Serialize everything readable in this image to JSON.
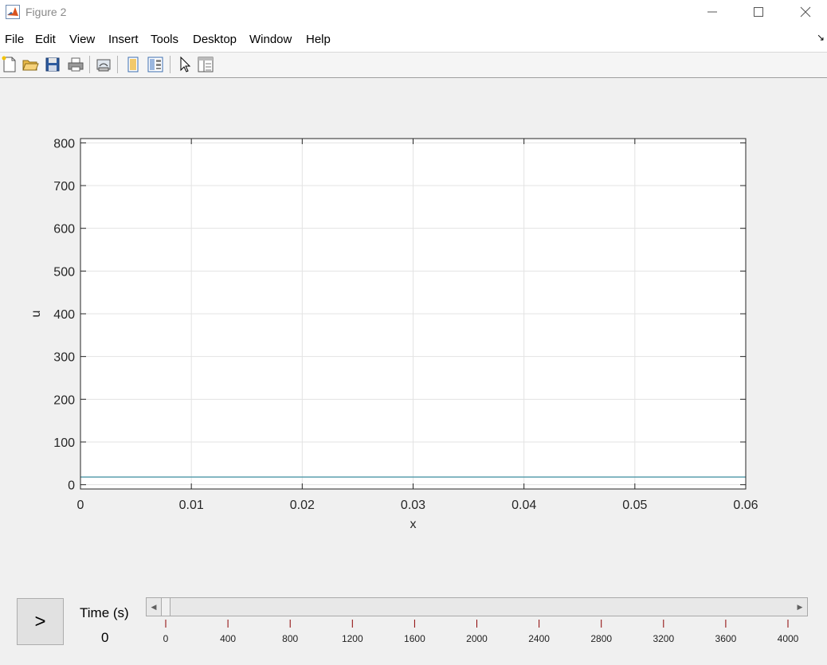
{
  "window": {
    "title": "Figure 2",
    "icon": "matlab-icon"
  },
  "menu": [
    "File",
    "Edit",
    "View",
    "Insert",
    "Tools",
    "Desktop",
    "Window",
    "Help"
  ],
  "toolbar": {
    "icons": [
      "new-figure-icon",
      "open-file-icon",
      "save-icon",
      "print-icon",
      "link-plot-icon",
      "hide-plot-tools-icon",
      "show-plot-tools-icon",
      "edit-plot-pointer-icon",
      "property-inspector-icon"
    ]
  },
  "chart_data": {
    "type": "line",
    "title": "",
    "xlabel": "x",
    "ylabel": "u",
    "xlim": [
      0,
      0.06
    ],
    "ylim": [
      -10,
      810
    ],
    "xticks": [
      0,
      0.01,
      0.02,
      0.03,
      0.04,
      0.05,
      0.06
    ],
    "xtick_labels": [
      "0",
      "0.01",
      "0.02",
      "0.03",
      "0.04",
      "0.05",
      "0.06"
    ],
    "yticks": [
      0,
      100,
      200,
      300,
      400,
      500,
      600,
      700,
      800
    ],
    "ytick_labels": [
      "0",
      "100",
      "200",
      "300",
      "400",
      "500",
      "600",
      "700",
      "800"
    ],
    "grid": true,
    "series": [
      {
        "x": [
          0,
          0.06
        ],
        "y": [
          18,
          18
        ],
        "color": "#5b9fae"
      }
    ]
  },
  "controls": {
    "play_label": ">",
    "time_label": "Time (s)",
    "time_value": "0",
    "slider": {
      "value": 0,
      "min": 0,
      "max": 4000,
      "ticks": [
        0,
        400,
        800,
        1200,
        1600,
        2000,
        2400,
        2800,
        3200,
        3600,
        4000
      ],
      "tick_labels": [
        "0",
        "400",
        "800",
        "1200",
        "1600",
        "2000",
        "2400",
        "2800",
        "3200",
        "3600",
        "4000"
      ],
      "tick_color": "#8b0000"
    }
  }
}
